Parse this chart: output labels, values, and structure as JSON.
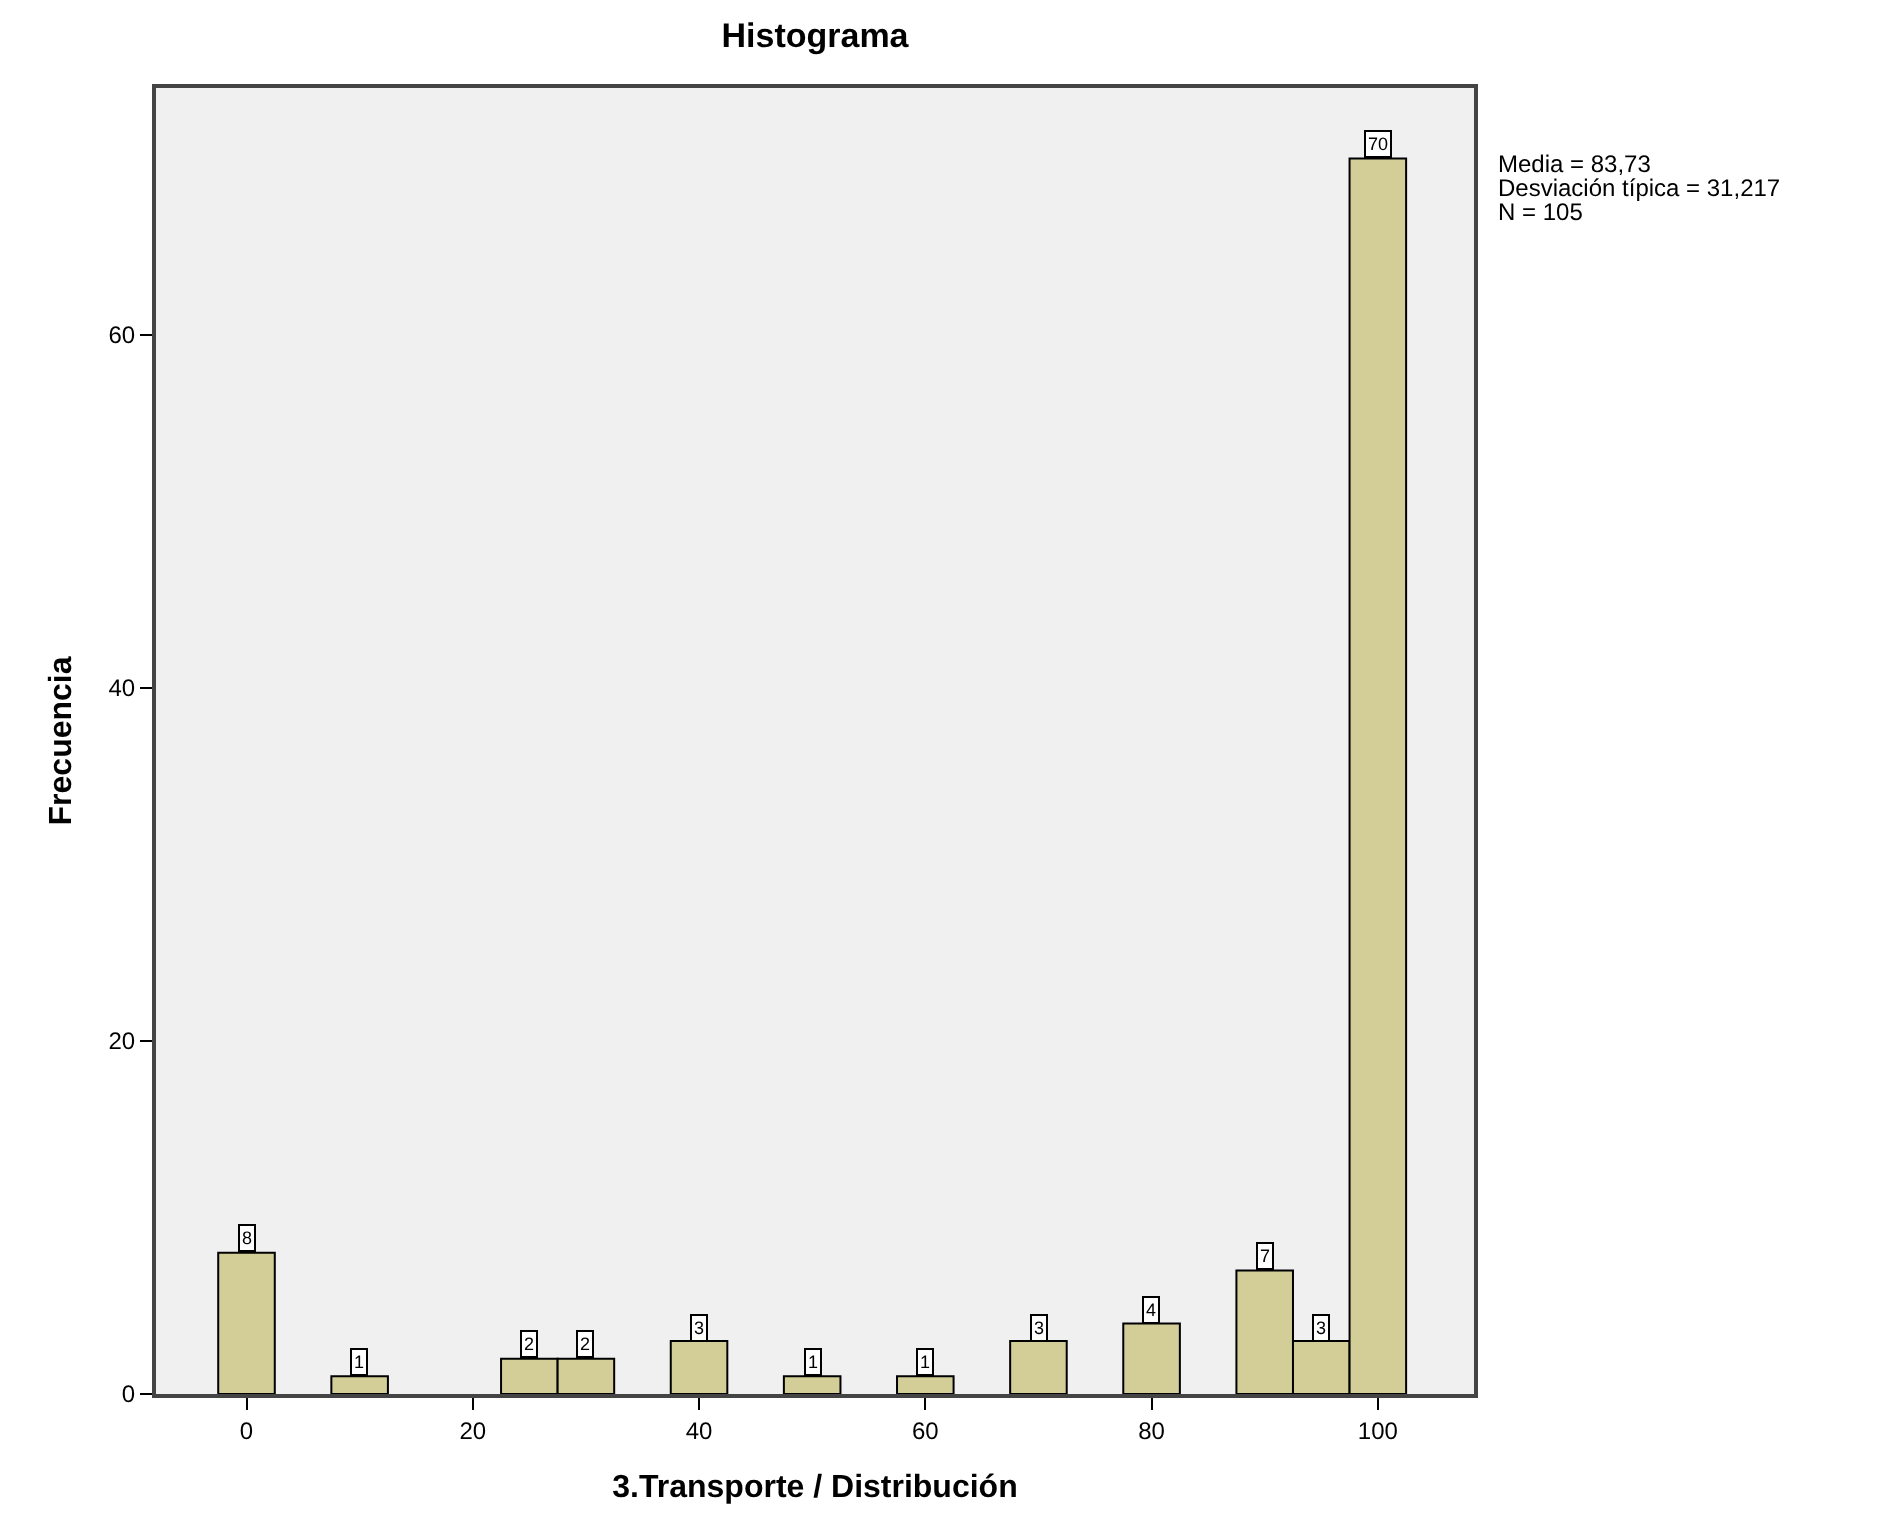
{
  "chart_data": {
    "type": "histogram",
    "title": "Histograma",
    "xlabel": "3.Transporte / Distribución",
    "ylabel": "Frecuencia",
    "bins": [
      -2.5,
      2.5,
      7.5,
      12.5,
      17.5,
      22.5,
      27.5,
      32.5,
      37.5,
      42.5,
      47.5,
      52.5,
      57.5,
      62.5,
      67.5,
      72.5,
      77.5,
      82.5,
      87.5,
      92.5,
      97.5,
      102.5
    ],
    "values": [
      8,
      0,
      1,
      0,
      0,
      2,
      2,
      0,
      3,
      0,
      1,
      0,
      1,
      0,
      3,
      0,
      4,
      0,
      7,
      3,
      70
    ],
    "value_labels": [
      "8",
      null,
      "1",
      null,
      null,
      "2",
      "2",
      null,
      "3",
      null,
      "1",
      null,
      "1",
      null,
      "3",
      null,
      "4",
      null,
      "7",
      "3",
      "70"
    ],
    "color": "#d3ce97",
    "xlim": [
      -8,
      108.5
    ],
    "xticks": [
      0,
      20,
      40,
      60,
      80,
      100
    ],
    "ylim": [
      0,
      74
    ],
    "yticks": [
      0,
      20,
      40,
      60
    ],
    "grid": false,
    "annotations": [
      "Media = 83,73",
      "Desviación típica = 31,217",
      "N = 105"
    ]
  }
}
